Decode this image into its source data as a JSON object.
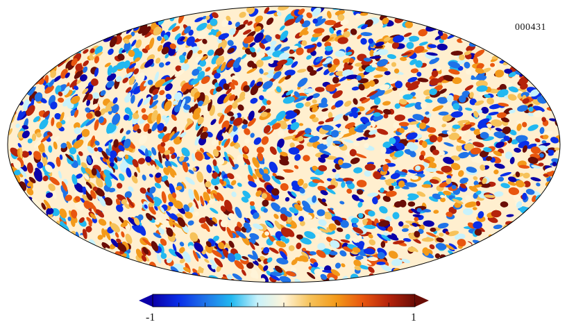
{
  "map": {
    "projection": "mollweide",
    "identifier": "000431",
    "colormap": [
      "#0b00a8",
      "#0a2fe8",
      "#1f73e8",
      "#22b8f0",
      "#c8f2fb",
      "#fff4d8",
      "#f6c25a",
      "#f39a1a",
      "#e8560f",
      "#b5230b",
      "#6a0d06"
    ]
  },
  "colorbar": {
    "min_label": "-1",
    "max_label": "1",
    "min_value": -1,
    "max_value": 1,
    "extend": "both"
  }
}
